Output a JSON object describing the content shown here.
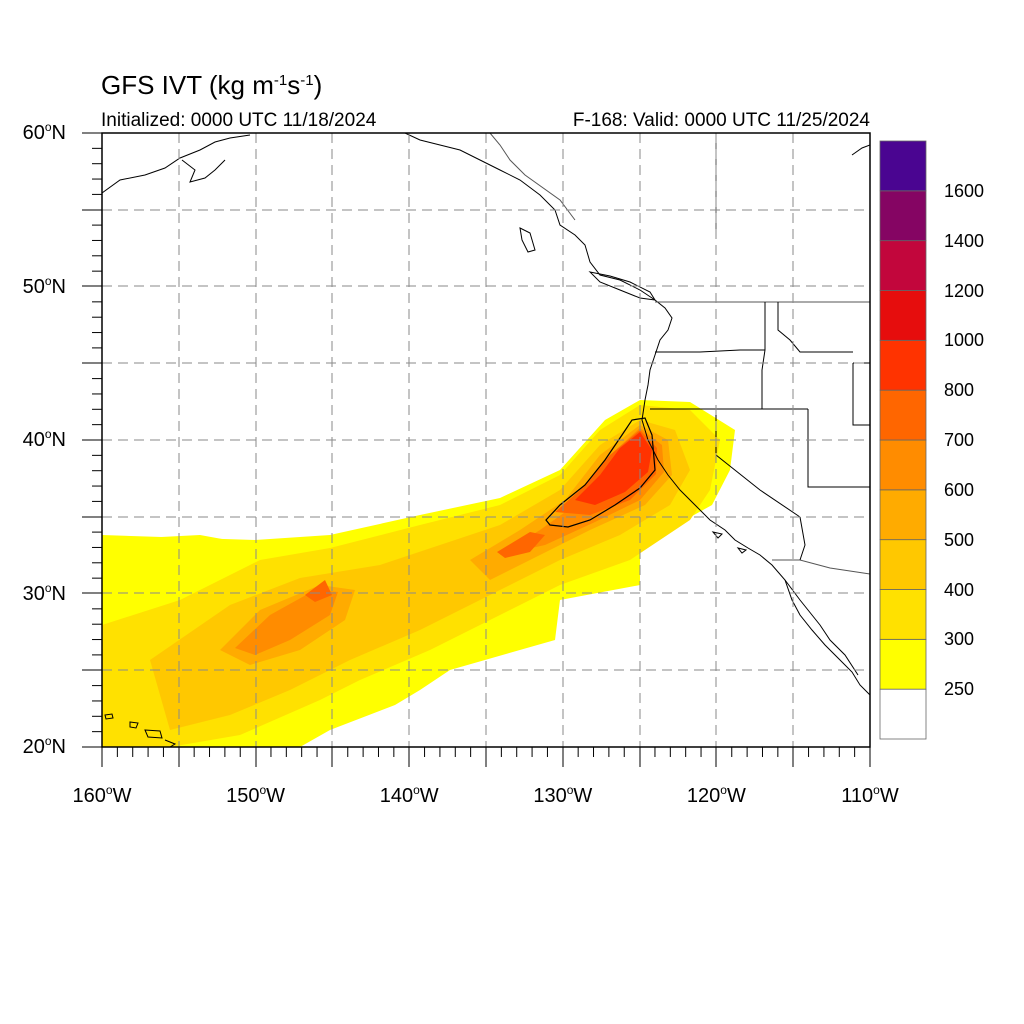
{
  "title": {
    "prefix": "GFS IVT (kg m",
    "exp1": "-1",
    "mid": "s",
    "exp2": "-1",
    "suffix": ")"
  },
  "initialized": "Initialized: 0000 UTC 11/18/2024",
  "valid": "F-168: Valid: 0000 UTC 11/25/2024",
  "lat_labels": [
    {
      "lat": 60,
      "text": "60",
      "unit": "o",
      "hemi": "N"
    },
    {
      "lat": 50,
      "text": "50",
      "unit": "o",
      "hemi": "N"
    },
    {
      "lat": 40,
      "text": "40",
      "unit": "o",
      "hemi": "N"
    },
    {
      "lat": 30,
      "text": "30",
      "unit": "o",
      "hemi": "N"
    },
    {
      "lat": 20,
      "text": "20",
      "unit": "o",
      "hemi": "N"
    }
  ],
  "lon_labels": [
    {
      "lon": -160,
      "text": "160",
      "unit": "o",
      "hemi": "W"
    },
    {
      "lon": -150,
      "text": "150",
      "unit": "o",
      "hemi": "W"
    },
    {
      "lon": -140,
      "text": "140",
      "unit": "o",
      "hemi": "W"
    },
    {
      "lon": -130,
      "text": "130",
      "unit": "o",
      "hemi": "W"
    },
    {
      "lon": -120,
      "text": "120",
      "unit": "o",
      "hemi": "W"
    },
    {
      "lon": -110,
      "text": "110",
      "unit": "o",
      "hemi": "W"
    }
  ],
  "colorbar": {
    "levels": [
      "250",
      "300",
      "400",
      "500",
      "600",
      "700",
      "800",
      "1000",
      "1200",
      "1400",
      "1600"
    ],
    "colors": [
      "#ffffff",
      "#ffff00",
      "#ffe100",
      "#ffc800",
      "#ffab00",
      "#ff8c00",
      "#ff6600",
      "#ff3300",
      "#e60d0d",
      "#c2063c",
      "#850563",
      "#4a0591"
    ]
  }
}
